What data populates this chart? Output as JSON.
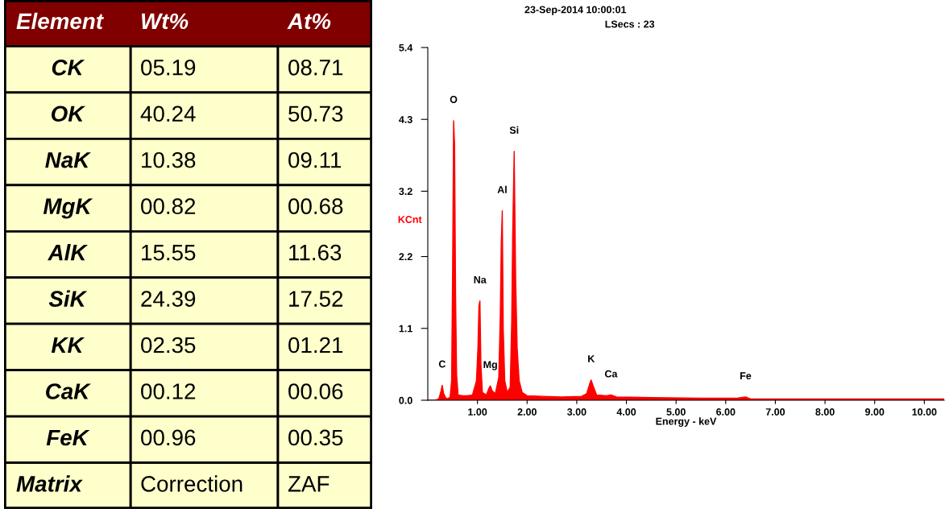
{
  "chart_data": [
    {
      "type": "other",
      "ylabel": "Element",
      "categories": [
        "Wt%",
        "At%"
      ],
      "y_categories": [
        "CK",
        "OK",
        "NaK",
        "MgK",
        "AlK",
        "SiK",
        "KK",
        "CaK",
        "FeK",
        "Matrix"
      ],
      "cell_labels": [
        [
          "05.19",
          "08.71"
        ],
        [
          "40.24",
          "50.73"
        ],
        [
          "10.38",
          "09.11"
        ],
        [
          "00.82",
          "00.68"
        ],
        [
          "15.55",
          "11.63"
        ],
        [
          "24.39",
          "17.52"
        ],
        [
          "02.35",
          "01.21"
        ],
        [
          "00.12",
          "00.06"
        ],
        [
          "00.96",
          "00.35"
        ],
        [
          "Correction",
          "ZAF"
        ]
      ],
      "color": "#ffffcc"
    },
    {
      "type": "area",
      "title": "23-Sep-2014 10:00:01",
      "subtitle": "LSecs : 23",
      "xlabel": "Energy - keV",
      "ylabel": "KCnt",
      "x": [
        0.0,
        0.15,
        0.22,
        0.26,
        0.29,
        0.32,
        0.36,
        0.4,
        0.45,
        0.48,
        0.5,
        0.52,
        0.54,
        0.56,
        0.58,
        0.61,
        0.7,
        0.8,
        0.9,
        0.98,
        1.01,
        1.03,
        1.05,
        1.07,
        1.1,
        1.18,
        1.23,
        1.26,
        1.3,
        1.36,
        1.43,
        1.46,
        1.48,
        1.5,
        1.52,
        1.55,
        1.6,
        1.66,
        1.69,
        1.71,
        1.74,
        1.77,
        1.8,
        1.84,
        1.9,
        2.0,
        2.3,
        2.7,
        3.1,
        3.2,
        3.26,
        3.29,
        3.33,
        3.4,
        3.6,
        3.69,
        3.8,
        4.5,
        5.5,
        6.2,
        6.4,
        6.5,
        7.5,
        8.5,
        9.5,
        10.4
      ],
      "series": [
        {
          "color": "#ff0000",
          "values": [
            0,
            0,
            0.02,
            0.12,
            0.23,
            0.1,
            0.04,
            0.02,
            0.05,
            0.3,
            2.0,
            4.28,
            3.9,
            1.6,
            0.4,
            0.08,
            0.07,
            0.07,
            0.08,
            0.3,
            0.8,
            1.45,
            1.52,
            0.55,
            0.12,
            0.08,
            0.18,
            0.22,
            0.14,
            0.1,
            0.35,
            1.3,
            2.4,
            2.9,
            1.1,
            0.3,
            0.12,
            0.2,
            1.2,
            2.55,
            3.81,
            1.85,
            0.8,
            0.3,
            0.12,
            0.07,
            0.06,
            0.05,
            0.06,
            0.1,
            0.25,
            0.31,
            0.22,
            0.08,
            0.07,
            0.08,
            0.05,
            0.04,
            0.03,
            0.03,
            0.05,
            0.02,
            0.02,
            0.02,
            0.02,
            0.02
          ]
        }
      ],
      "xlim": [
        0,
        10.4
      ],
      "xticks": [
        {
          "value": 1,
          "label": "1.00"
        },
        {
          "value": 2,
          "label": "2.00"
        },
        {
          "value": 3,
          "label": "3.00"
        },
        {
          "value": 4,
          "label": "4.00"
        },
        {
          "value": 5,
          "label": "5.00"
        },
        {
          "value": 6,
          "label": "6.00"
        },
        {
          "value": 7,
          "label": "7.00"
        },
        {
          "value": 8,
          "label": "8.00"
        },
        {
          "value": 9,
          "label": "9.00"
        },
        {
          "value": 10,
          "label": "10.00"
        }
      ],
      "ylim": [
        0,
        5.4
      ],
      "yticks": [
        {
          "value": 0,
          "label": "0.0"
        },
        1.1,
        2.2,
        3.2,
        4.3,
        5.4
      ],
      "grid": false,
      "legend": false,
      "annotations": [
        {
          "text": "C",
          "x": 0.29,
          "y": 0.23
        },
        {
          "text": "O",
          "x": 0.52,
          "y": 4.28
        },
        {
          "text": "Na",
          "x": 1.05,
          "y": 1.52
        },
        {
          "text": "Mg",
          "x": 1.26,
          "y": 0.22
        },
        {
          "text": "Al",
          "x": 1.5,
          "y": 2.9
        },
        {
          "text": "Si",
          "x": 1.74,
          "y": 3.81
        },
        {
          "text": "K",
          "x": 3.29,
          "y": 0.31
        },
        {
          "text": "Ca",
          "x": 3.69,
          "y": 0.08
        },
        {
          "text": "Fe",
          "x": 6.4,
          "y": 0.05
        }
      ]
    }
  ]
}
